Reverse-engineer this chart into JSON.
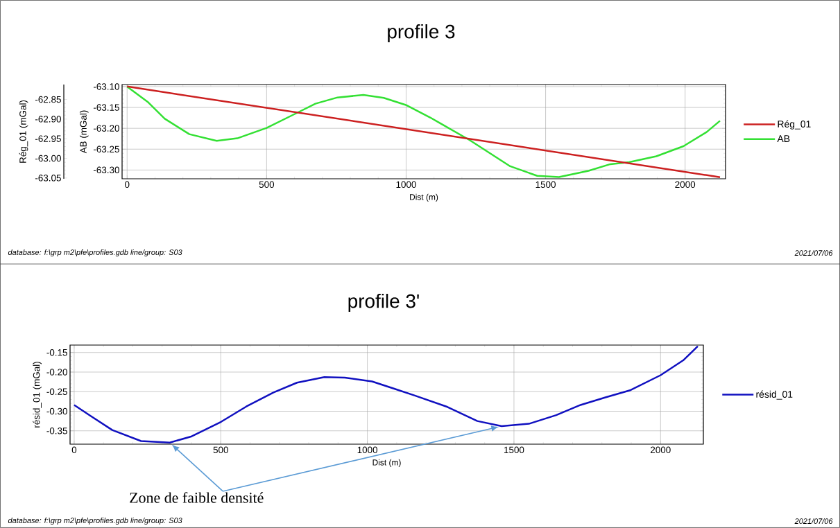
{
  "chart_data": [
    {
      "type": "line",
      "title": "profile 3",
      "xlabel": "Dist (m)",
      "ylabel": "AB (mGal)",
      "y2label": "Rég_01 (mGal)",
      "xlim": [
        -18,
        2145
      ],
      "xticks": [
        0,
        500,
        1000,
        1500,
        2000
      ],
      "ylim": [
        -63.321,
        -63.095
      ],
      "yticks": [
        {
          "value": -63.1,
          "label": "-63.10"
        },
        -63.15,
        {
          "value": -63.2,
          "label": "-63.20"
        },
        -63.25,
        {
          "value": -63.3,
          "label": "-63.30"
        }
      ],
      "y2lim": [
        -63.052,
        -62.812
      ],
      "y2ticks": [
        -62.85,
        {
          "value": -62.9,
          "label": "-62.90"
        },
        -62.95,
        {
          "value": -63.0,
          "label": "-63.00"
        },
        -63.05
      ],
      "grid": true,
      "legend": "right",
      "series": [
        {
          "name": "Rég_01",
          "color": "#cc2020",
          "axis": "y2",
          "x": [
            0,
            2125
          ],
          "values": [
            -62.817,
            -63.048
          ]
        },
        {
          "name": "AB",
          "color": "#33e033",
          "x": [
            0,
            76,
            135,
            223,
            321,
            395,
            500,
            606,
            675,
            754,
            847,
            920,
            999,
            1086,
            1120,
            1227,
            1373,
            1470,
            1548,
            1654,
            1732,
            1800,
            1897,
            1994,
            2077,
            2125
          ],
          "values": [
            -63.1,
            -63.138,
            -63.177,
            -63.214,
            -63.23,
            -63.224,
            -63.199,
            -63.164,
            -63.141,
            -63.126,
            -63.12,
            -63.127,
            -63.144,
            -63.174,
            -63.187,
            -63.228,
            -63.291,
            -63.314,
            -63.317,
            -63.302,
            -63.286,
            -63.281,
            -63.267,
            -63.243,
            -63.209,
            -63.182
          ]
        }
      ],
      "annotations": [
        "database: f:\\grp m2\\pfe\\profiles.gdb  line/group: S03",
        "2021/07/06"
      ]
    },
    {
      "type": "line",
      "title": "profile 3'",
      "xlabel": "Dist (m)",
      "ylabel": "résid_01 (mGal)",
      "xlim": [
        -14,
        2146
      ],
      "xticks": [
        0,
        500,
        1000,
        1500,
        2000
      ],
      "ylim": [
        -0.384,
        -0.131
      ],
      "yticks": [
        -0.15,
        {
          "value": -0.2,
          "label": "-0.20"
        },
        -0.25,
        {
          "value": -0.3,
          "label": "-0.30"
        },
        -0.35
      ],
      "grid": true,
      "legend": "right",
      "series": [
        {
          "name": "résid_01",
          "color": "#1010c0",
          "x": [
            0,
            56,
            130,
            228,
            326,
            401,
            501,
            587,
            680,
            760,
            853,
            923,
            1016,
            1090,
            1162,
            1273,
            1375,
            1458,
            1551,
            1644,
            1727,
            1810,
            1898,
            2000,
            2079,
            2127
          ],
          "values": [
            -0.284,
            -0.312,
            -0.348,
            -0.376,
            -0.38,
            -0.364,
            -0.327,
            -0.288,
            -0.252,
            -0.227,
            -0.213,
            -0.214,
            -0.224,
            -0.242,
            -0.26,
            -0.289,
            -0.325,
            -0.338,
            -0.332,
            -0.31,
            -0.284,
            -0.265,
            -0.246,
            -0.208,
            -0.169,
            -0.134
          ]
        }
      ],
      "annotations": [
        "database: f:\\grp m2\\pfe\\profiles.gdb  line/group: S03",
        "2021/07/06",
        "Zone de faible densité"
      ]
    }
  ]
}
